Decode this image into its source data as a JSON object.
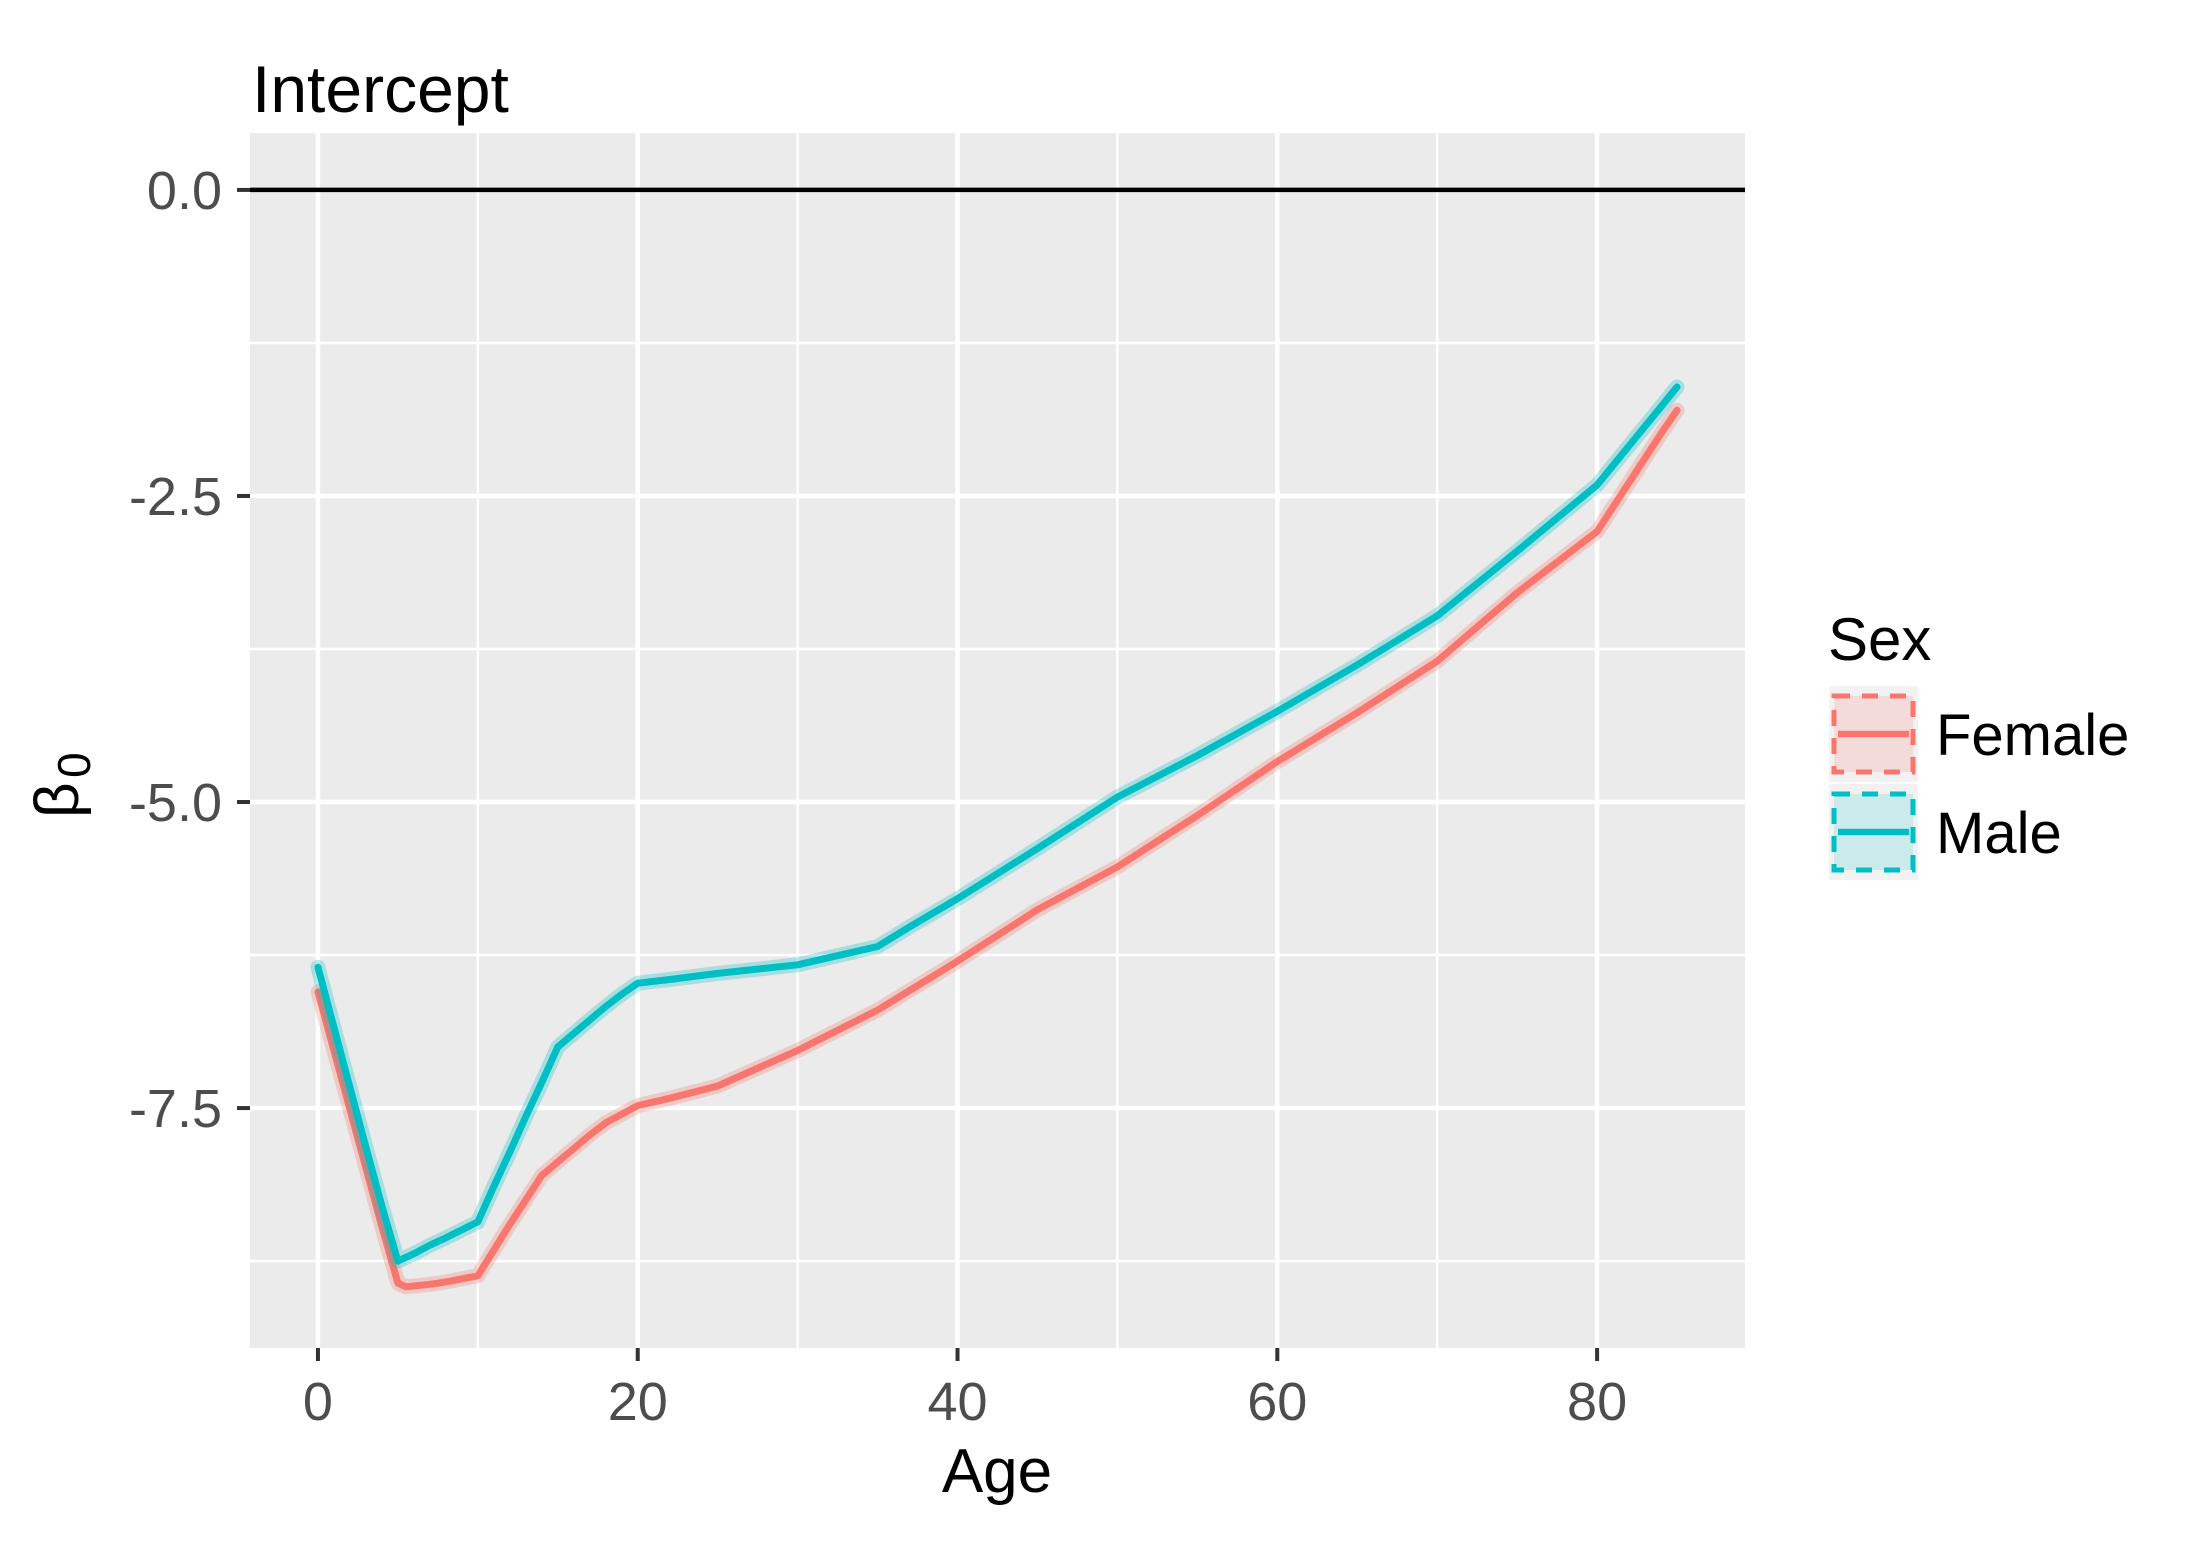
{
  "chart_data": {
    "type": "line",
    "title": "Intercept",
    "xlabel": "Age",
    "ylabel_symbol": "β",
    "ylabel_subscript": "0",
    "xlim": [
      -4.25,
      89.25
    ],
    "ylim": [
      -9.46,
      0.465
    ],
    "grid": "major-and-minor-white-on-grey",
    "panel_color": "#EBEBEB",
    "gridline_color": "#FFFFFF",
    "tick_mark_color": "#333333",
    "tick_label_color": "#4D4D4D",
    "zero_line": {
      "y": 0,
      "color": "#000000"
    },
    "x_ticks": [
      {
        "v": 0,
        "label": "0"
      },
      {
        "v": 20,
        "label": "20"
      },
      {
        "v": 40,
        "label": "40"
      },
      {
        "v": 60,
        "label": "60"
      },
      {
        "v": 80,
        "label": "80"
      }
    ],
    "y_ticks": [
      {
        "v": 0,
        "label": "0.0"
      },
      {
        "v": -2.5,
        "label": "-2.5"
      },
      {
        "v": -5.0,
        "label": "-5.0"
      },
      {
        "v": -7.5,
        "label": "-7.5"
      }
    ],
    "x_minor": [
      10,
      30,
      50,
      70
    ],
    "y_minor": [
      -1.25,
      -3.75,
      -6.25,
      -8.75
    ],
    "series": [
      {
        "name": "Female",
        "color": "#F8766D",
        "ribbon_fill": "rgba(248,118,109,0.30)",
        "points": [
          [
            0,
            -6.55
          ],
          [
            1,
            -7.03
          ],
          [
            2,
            -7.51
          ],
          [
            3,
            -7.99
          ],
          [
            4,
            -8.47
          ],
          [
            5,
            -8.93
          ],
          [
            5.5,
            -8.96
          ],
          [
            7,
            -8.94
          ],
          [
            8,
            -8.92
          ],
          [
            10,
            -8.87
          ],
          [
            11,
            -8.66
          ],
          [
            12,
            -8.45
          ],
          [
            13,
            -8.25
          ],
          [
            14,
            -8.05
          ],
          [
            15,
            -7.94
          ],
          [
            16,
            -7.83
          ],
          [
            17,
            -7.72
          ],
          [
            18,
            -7.62
          ],
          [
            19,
            -7.55
          ],
          [
            20,
            -7.48
          ],
          [
            22,
            -7.42
          ],
          [
            25,
            -7.32
          ],
          [
            30,
            -7.03
          ],
          [
            35,
            -6.7
          ],
          [
            40,
            -6.3
          ],
          [
            45,
            -5.88
          ],
          [
            50,
            -5.53
          ],
          [
            55,
            -5.11
          ],
          [
            60,
            -4.67
          ],
          [
            65,
            -4.27
          ],
          [
            70,
            -3.85
          ],
          [
            75,
            -3.29
          ],
          [
            80,
            -2.79
          ],
          [
            81,
            -2.59
          ],
          [
            82,
            -2.39
          ],
          [
            83,
            -2.19
          ],
          [
            84,
            -1.99
          ],
          [
            85,
            -1.8
          ]
        ]
      },
      {
        "name": "Male",
        "color": "#00BFC4",
        "ribbon_fill": "rgba(0,191,196,0.30)",
        "points": [
          [
            0,
            -6.35
          ],
          [
            1,
            -6.84
          ],
          [
            2,
            -7.33
          ],
          [
            3,
            -7.82
          ],
          [
            4,
            -8.3
          ],
          [
            5,
            -8.75
          ],
          [
            6,
            -8.69
          ],
          [
            7,
            -8.62
          ],
          [
            8,
            -8.56
          ],
          [
            10,
            -8.43
          ],
          [
            11,
            -8.14
          ],
          [
            12,
            -7.86
          ],
          [
            13,
            -7.57
          ],
          [
            14,
            -7.29
          ],
          [
            15,
            -7.0
          ],
          [
            16,
            -6.89
          ],
          [
            17,
            -6.78
          ],
          [
            18,
            -6.67
          ],
          [
            19,
            -6.57
          ],
          [
            20,
            -6.48
          ],
          [
            22,
            -6.45
          ],
          [
            25,
            -6.4
          ],
          [
            30,
            -6.33
          ],
          [
            33,
            -6.24
          ],
          [
            35,
            -6.18
          ],
          [
            37,
            -6.02
          ],
          [
            40,
            -5.79
          ],
          [
            45,
            -5.38
          ],
          [
            50,
            -4.96
          ],
          [
            55,
            -4.62
          ],
          [
            60,
            -4.26
          ],
          [
            65,
            -3.88
          ],
          [
            70,
            -3.48
          ],
          [
            75,
            -2.95
          ],
          [
            80,
            -2.41
          ],
          [
            81,
            -2.25
          ],
          [
            82,
            -2.09
          ],
          [
            83,
            -1.93
          ],
          [
            84,
            -1.77
          ],
          [
            85,
            -1.61
          ]
        ]
      }
    ]
  },
  "legend": {
    "title": "Sex",
    "key_background": "#F2F2F2",
    "entries": [
      {
        "label": "Female",
        "color": "#F8766D",
        "fill": "rgba(248,118,109,0.18)"
      },
      {
        "label": "Male",
        "color": "#00BFC4",
        "fill": "rgba(0,191,196,0.16)"
      }
    ]
  }
}
